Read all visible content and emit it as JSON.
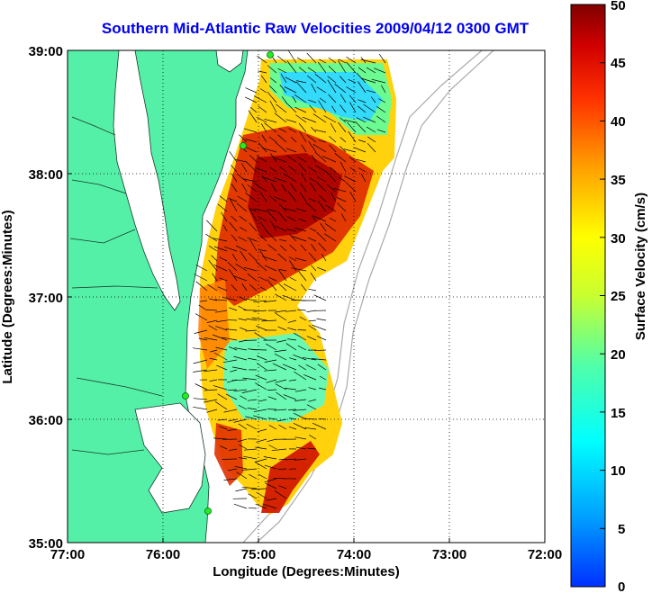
{
  "title": "Southern Mid-Atlantic Raw Velocities 2009/04/12 0300 GMT",
  "xlabel": "Longitude (Degrees:Minutes)",
  "ylabel": "Latitude (Degrees:Minutes)",
  "colorbar_label": "Surface Velocity (cm/s)",
  "x_ticks": [
    "77:00",
    "76:00",
    "75:00",
    "74:00",
    "73:00",
    "72:00"
  ],
  "y_ticks": [
    "39:00",
    "38:00",
    "37:00",
    "36:00",
    "35:00"
  ],
  "colorbar_ticks": [
    "50",
    "45",
    "40",
    "35",
    "30",
    "25",
    "20",
    "15",
    "10",
    "5",
    "0"
  ],
  "colors": {
    "land": "#55f0a8",
    "ocean": "#ffffff",
    "title": "#0000ee",
    "station": "#22ee22"
  },
  "chart_data": {
    "type": "heatmap",
    "title": "Southern Mid-Atlantic Raw Velocities 2009/04/12 0300 GMT",
    "xlabel": "Longitude (Degrees:Minutes)",
    "ylabel": "Latitude (Degrees:Minutes)",
    "xlim": [
      -77,
      -72
    ],
    "ylim": [
      35,
      39
    ],
    "colorbar": {
      "label": "Surface Velocity (cm/s)",
      "range": [
        0,
        50
      ],
      "colormap": "jet"
    },
    "grid": true,
    "stations": [
      {
        "lon": -74.88,
        "lat": 38.95
      },
      {
        "lon": -75.08,
        "lat": 38.23
      },
      {
        "lon": -75.72,
        "lat": 36.18
      },
      {
        "lon": -75.47,
        "lat": 35.25
      }
    ],
    "field_bounds": {
      "lon": [
        -75.4,
        -73.55
      ],
      "lat": [
        35.25,
        38.9
      ]
    }
  }
}
